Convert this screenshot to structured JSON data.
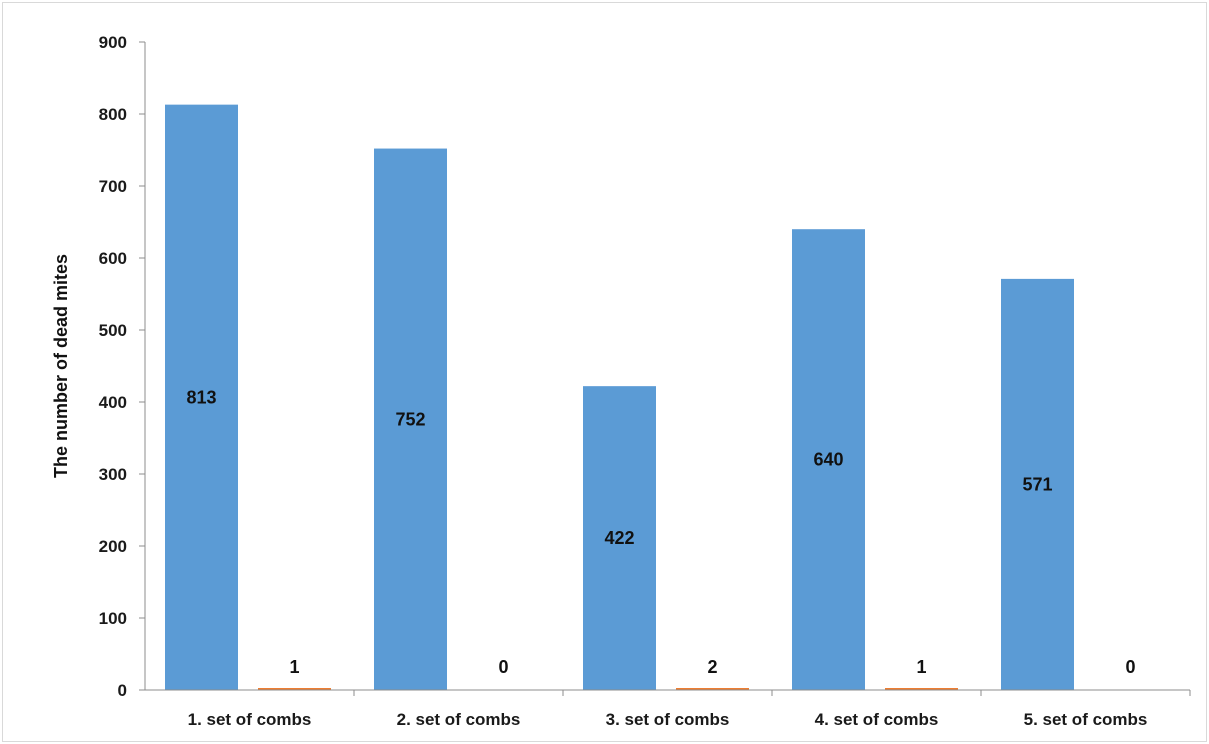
{
  "chart_data": {
    "type": "bar",
    "categories": [
      "1. set of combs",
      "2. set of combs",
      "3. set of combs",
      "4. set of combs",
      "5. set of combs"
    ],
    "series": [
      {
        "values": [
          813,
          752,
          422,
          640,
          571
        ],
        "color": "#5b9bd5"
      },
      {
        "values": [
          1,
          0,
          2,
          1,
          0
        ],
        "color": "#ed7d31"
      }
    ],
    "title": "",
    "xlabel": "",
    "ylabel": "The number of dead mites",
    "ylim": [
      0,
      900
    ],
    "yticks": [
      "0",
      "100",
      "200",
      "300",
      "400",
      "500",
      "600",
      "700",
      "800",
      "900"
    ],
    "grid": false,
    "legend": "none"
  }
}
